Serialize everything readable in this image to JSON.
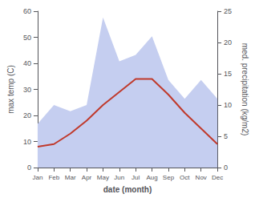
{
  "chart_data": {
    "type": "line",
    "categories": [
      "Jan",
      "Feb",
      "Mar",
      "Apr",
      "May",
      "Jun",
      "Jul",
      "Aug",
      "Sep",
      "Oct",
      "Nov",
      "Dec"
    ],
    "xlabel": "date (month)",
    "ylabel": "max temp (C)",
    "y2label": "med. precipitation (kg/m2)",
    "ylim": [
      0,
      60
    ],
    "yticks": [
      0,
      10,
      20,
      30,
      40,
      50,
      60
    ],
    "y2lim": [
      0,
      25
    ],
    "y2ticks": [
      0,
      5,
      10,
      15,
      20,
      25
    ],
    "grid": false,
    "series": [
      {
        "type": "area",
        "axis": "y2",
        "color": "#c5cef0",
        "values": [
          7,
          10,
          9,
          10,
          24,
          17,
          18,
          21,
          14,
          11,
          14,
          11
        ]
      },
      {
        "type": "line",
        "color": "#c0392b",
        "values": [
          8,
          9,
          13,
          18,
          24,
          29,
          34,
          34,
          28,
          21,
          15,
          9
        ]
      }
    ]
  }
}
